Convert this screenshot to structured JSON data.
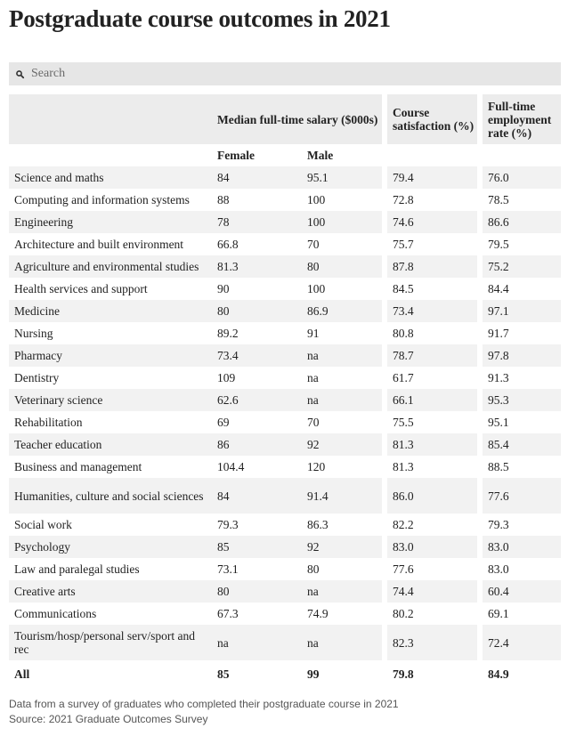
{
  "title": "Postgraduate course outcomes in 2021",
  "search": {
    "placeholder": "Search",
    "icon": "search-icon"
  },
  "header": {
    "salary": "Median full-time salary ($000s)",
    "satisfaction": "Course satisfaction (%)",
    "employment": "Full-time employment rate (%)",
    "female": "Female",
    "male": "Male"
  },
  "chart_data": {
    "type": "table",
    "columns": [
      "",
      "Median full-time salary ($000s) Female",
      "Median full-time salary ($000s) Male",
      "Course satisfaction (%)",
      "Full-time employment rate (%)"
    ],
    "rows": [
      [
        "Science and maths",
        "84",
        "95.1",
        "79.4",
        "76.0"
      ],
      [
        "Computing and information systems",
        "88",
        "100",
        "72.8",
        "78.5"
      ],
      [
        "Engineering",
        "78",
        "100",
        "74.6",
        "86.6"
      ],
      [
        "Architecture and built environment",
        "66.8",
        "70",
        "75.7",
        "79.5"
      ],
      [
        "Agriculture and environmental studies",
        "81.3",
        "80",
        "87.8",
        "75.2"
      ],
      [
        "Health services and support",
        "90",
        "100",
        "84.5",
        "84.4"
      ],
      [
        "Medicine",
        "80",
        "86.9",
        "73.4",
        "97.1"
      ],
      [
        "Nursing",
        "89.2",
        "91",
        "80.8",
        "91.7"
      ],
      [
        "Pharmacy",
        "73.4",
        "na",
        "78.7",
        "97.8"
      ],
      [
        "Dentistry",
        "109",
        "na",
        "61.7",
        "91.3"
      ],
      [
        "Veterinary science",
        "62.6",
        "na",
        "66.1",
        "95.3"
      ],
      [
        "Rehabilitation",
        "69",
        "70",
        "75.5",
        "95.1"
      ],
      [
        "Teacher education",
        "86",
        "92",
        "81.3",
        "85.4"
      ],
      [
        "Business and management",
        "104.4",
        "120",
        "81.3",
        "88.5"
      ],
      [
        "Humanities, culture and social sciences",
        "84",
        "91.4",
        "86.0",
        "77.6"
      ],
      [
        "Social work",
        "79.3",
        "86.3",
        "82.2",
        "79.3"
      ],
      [
        "Psychology",
        "85",
        "92",
        "83.0",
        "83.0"
      ],
      [
        "Law and paralegal studies",
        "73.1",
        "80",
        "77.6",
        "83.0"
      ],
      [
        "Creative arts",
        "80",
        "na",
        "74.4",
        "60.4"
      ],
      [
        "Communications",
        "67.3",
        "74.9",
        "80.2",
        "69.1"
      ],
      [
        "Tourism/hosp/personal serv/sport and rec",
        "na",
        "na",
        "82.3",
        "72.4"
      ]
    ],
    "total": [
      "All",
      "85",
      "99",
      "79.8",
      "84.9"
    ]
  },
  "footer": {
    "note": "Data from a survey of graduates who completed their postgraduate course in 2021",
    "source": "Source: 2021 Graduate Outcomes Survey"
  },
  "colors": {
    "header_bg": "#ececec",
    "stripe_bg": "#f2f2f2",
    "search_bg": "#e6e6e6",
    "text": "#222222"
  }
}
